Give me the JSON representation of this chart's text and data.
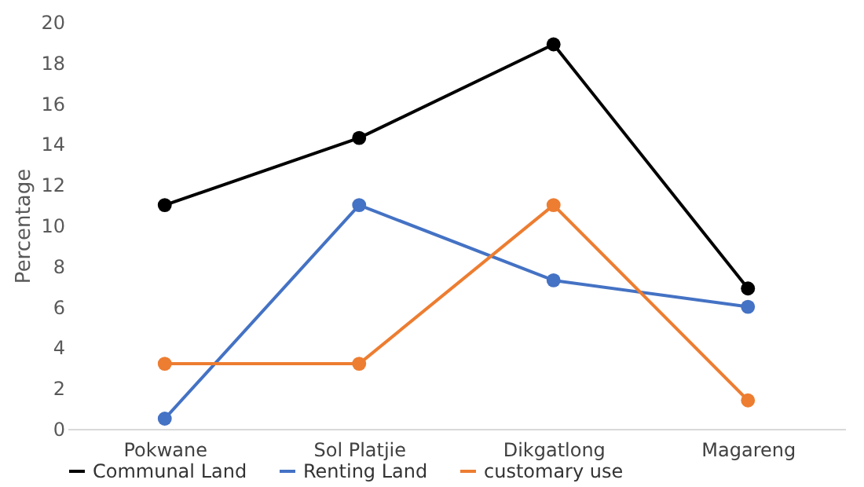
{
  "chart_data": {
    "type": "line",
    "ylabel": "Percentage",
    "categories": [
      "Pokwane",
      "Sol Platjie",
      "Dikgatlong",
      "Magareng"
    ],
    "series": [
      {
        "name": "Communal Land",
        "color": "#000000",
        "values": [
          11.0,
          14.3,
          18.9,
          6.9
        ]
      },
      {
        "name": "Renting Land",
        "color": "#4472c4",
        "values": [
          0.5,
          11.0,
          7.3,
          6.0
        ]
      },
      {
        "name": "customary use",
        "color": "#ed7d31",
        "values": [
          3.2,
          3.2,
          11.0,
          1.4
        ]
      }
    ],
    "ylim": [
      0,
      20
    ],
    "yticks": [
      0,
      2,
      4,
      6,
      8,
      10,
      12,
      14,
      16,
      18,
      20
    ],
    "grid": false,
    "legend": "bottom",
    "marker": "circle",
    "line_style": "solid"
  }
}
